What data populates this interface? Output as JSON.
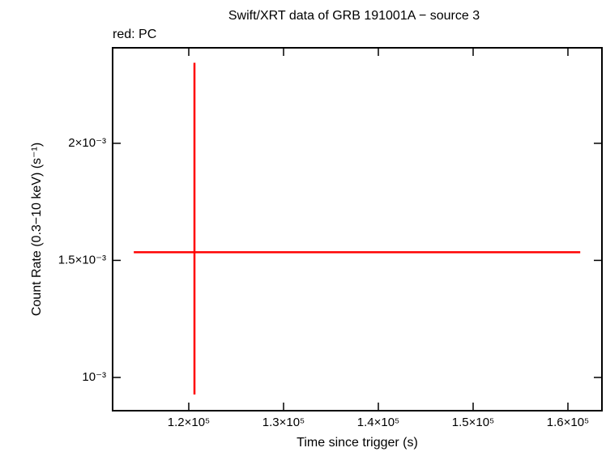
{
  "chart_data": {
    "type": "errorbar",
    "title": "Swift/XRT data of GRB 191001A − source 3",
    "subtitle": "red: PC",
    "x_label": "Time since trigger (s)",
    "y_label": "Count Rate (0.3−10 keV) (s⁻¹)",
    "xlim": [
      111966,
      163590
    ],
    "ylim": [
      0.000858,
      0.002408
    ],
    "xticks": [
      {
        "value": 120000,
        "label": "1.2×10⁵"
      },
      {
        "value": 130000,
        "label": "1.3×10⁵"
      },
      {
        "value": 140000,
        "label": "1.4×10⁵"
      },
      {
        "value": 150000,
        "label": "1.5×10⁵"
      },
      {
        "value": 160000,
        "label": "1.6×10⁵"
      }
    ],
    "yticks": [
      {
        "value": 0.001,
        "label": "10⁻³"
      },
      {
        "value": 0.0015,
        "label": "1.5×10⁻³"
      },
      {
        "value": 0.002,
        "label": "2×10⁻³"
      }
    ],
    "series": [
      {
        "color": "#ff0000",
        "x": [
          120600
        ],
        "xerr_low": [
          6400
        ],
        "xerr_high": [
          40700
        ],
        "y": [
          0.001535
        ],
        "yerr_low": [
          0.000608
        ],
        "yerr_high": [
          0.000809
        ]
      }
    ]
  }
}
